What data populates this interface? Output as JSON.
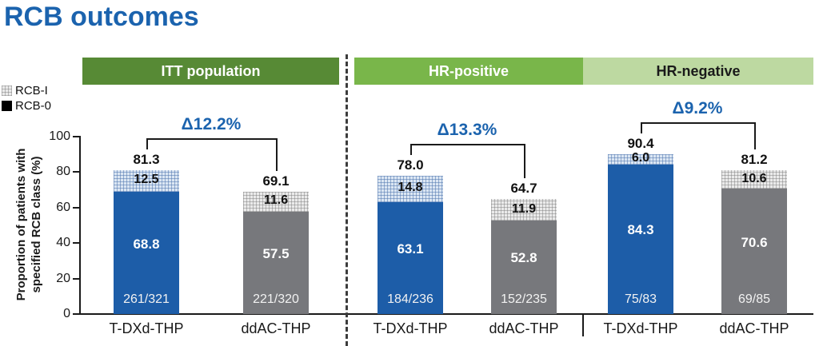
{
  "title": "RCB outcomes",
  "legend": {
    "items": [
      {
        "label": "RCB-I",
        "swatch": "hatch"
      },
      {
        "label": "RCB-0",
        "swatch": "solid-black"
      }
    ]
  },
  "y_axis": {
    "label_line1": "Proportion of patients with",
    "label_line2": "specified RCB class (%)",
    "ticks": [
      0,
      20,
      40,
      60,
      80,
      100
    ]
  },
  "colors": {
    "title_blue": "#1b63ae",
    "delta_blue": "#1b63ae",
    "bar_blue": "#1d5da8",
    "bar_gray": "#77787c",
    "hatch_blue_bg": "#dbe6f3",
    "hatch_blue_line": "rgba(82,120,176,0.55)",
    "hatch_gray_bg": "#eaeaea",
    "hatch_gray_line": "rgba(120,120,120,0.45)"
  },
  "chart_data": {
    "type": "bar",
    "stacked": true,
    "title": "RCB outcomes",
    "ylabel": "Proportion of patients with specified RCB class (%)",
    "ylim": [
      0,
      100
    ],
    "grid": false,
    "legend_position": "top-left",
    "series_legend": [
      "RCB-I",
      "RCB-0"
    ],
    "groups": [
      {
        "name": "ITT population",
        "header_color": "#578a35",
        "header_text_color": "#ffffff",
        "delta": "Δ12.2%",
        "bars": [
          {
            "label": "T-DXd-THP",
            "color_key": "blue",
            "rcb0": 68.8,
            "rcb1": 12.5,
            "total": 81.3,
            "fraction": "261/321"
          },
          {
            "label": "ddAC-THP",
            "color_key": "gray",
            "rcb0": 57.5,
            "rcb1": 11.6,
            "total": 69.1,
            "fraction": "221/320"
          }
        ]
      },
      {
        "name": "HR-positive",
        "header_color": "#79b64a",
        "header_text_color": "#ffffff",
        "delta": "Δ13.3%",
        "bars": [
          {
            "label": "T-DXd-THP",
            "color_key": "blue",
            "rcb0": 63.1,
            "rcb1": 14.8,
            "total": 78.0,
            "fraction": "184/236"
          },
          {
            "label": "ddAC-THP",
            "color_key": "gray",
            "rcb0": 52.8,
            "rcb1": 11.9,
            "total": 64.7,
            "fraction": "152/235"
          }
        ]
      },
      {
        "name": "HR-negative",
        "header_color": "#bdd9a1",
        "header_text_color": "#1a1a1a",
        "delta": "Δ9.2%",
        "bars": [
          {
            "label": "T-DXd-THP",
            "color_key": "blue",
            "rcb0": 84.3,
            "rcb1": 6.0,
            "total": 90.4,
            "fraction": "75/83"
          },
          {
            "label": "ddAC-THP",
            "color_key": "gray",
            "rcb0": 70.6,
            "rcb1": 10.6,
            "total": 81.2,
            "fraction": "69/85"
          }
        ]
      }
    ]
  }
}
